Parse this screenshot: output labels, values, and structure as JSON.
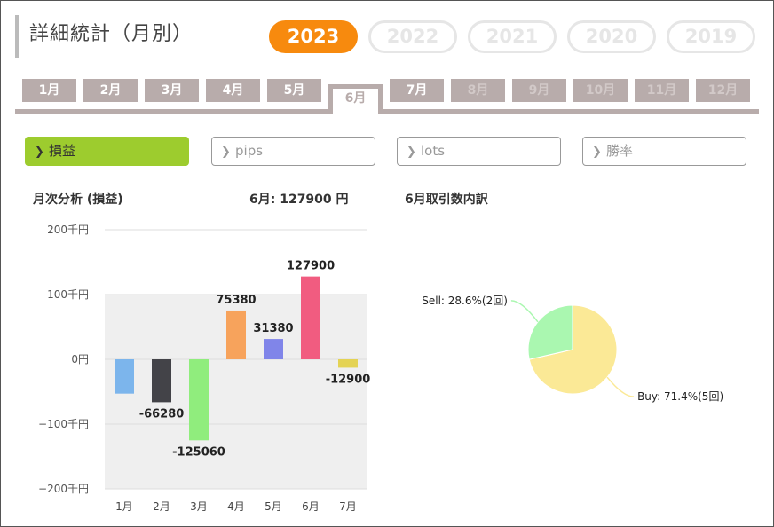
{
  "header": {
    "title": "詳細統計（月別）",
    "years": [
      {
        "label": "2023",
        "active": true
      },
      {
        "label": "2022",
        "active": false
      },
      {
        "label": "2021",
        "active": false
      },
      {
        "label": "2020",
        "active": false
      },
      {
        "label": "2019",
        "active": false
      }
    ]
  },
  "months": [
    {
      "label": "1月",
      "state": "past"
    },
    {
      "label": "2月",
      "state": "past"
    },
    {
      "label": "3月",
      "state": "past"
    },
    {
      "label": "4月",
      "state": "past"
    },
    {
      "label": "5月",
      "state": "past"
    },
    {
      "label": "6月",
      "state": "active"
    },
    {
      "label": "7月",
      "state": "past"
    },
    {
      "label": "8月",
      "state": "future"
    },
    {
      "label": "9月",
      "state": "future"
    },
    {
      "label": "10月",
      "state": "future"
    },
    {
      "label": "11月",
      "state": "future"
    },
    {
      "label": "12月",
      "state": "future"
    }
  ],
  "metrics": [
    {
      "label": "損益",
      "active": true,
      "icon": "chevron-right-icon"
    },
    {
      "label": "pips",
      "active": false,
      "icon": "chevron-right-icon"
    },
    {
      "label": "lots",
      "active": false,
      "icon": "chevron-right-icon"
    },
    {
      "label": "勝率",
      "active": false,
      "icon": "chevron-right-icon"
    }
  ],
  "colors": {
    "accent": "#f78a0e",
    "metric_active": "#9dcc2e",
    "tab": "#b8acab"
  },
  "chart_data": [
    {
      "type": "bar",
      "title": "月次分析 (損益)",
      "summary": "6月:  127900 円",
      "categories": [
        "1月",
        "2月",
        "3月",
        "4月",
        "5月",
        "6月",
        "7月"
      ],
      "values": [
        -53000,
        -66280,
        -125060,
        75380,
        31380,
        127900,
        -12900
      ],
      "data_labels": [
        "",
        "-66280",
        "-125060",
        "75380",
        "31380",
        "127900",
        "-12900"
      ],
      "colors": [
        "#7cb5ec",
        "#434348",
        "#90ed7d",
        "#f7a35c",
        "#8085e9",
        "#f15c80",
        "#e4d354"
      ],
      "ylim": [
        -200000,
        200000
      ],
      "yticks": [
        {
          "value": 200000,
          "label": "200千円"
        },
        {
          "value": 100000,
          "label": "100千円"
        },
        {
          "value": 0,
          "label": "0円"
        },
        {
          "value": -100000,
          "label": "−100千円"
        },
        {
          "value": -200000,
          "label": "−200千円"
        }
      ],
      "grid": true
    },
    {
      "type": "pie",
      "title": "6月取引数内訳",
      "slices": [
        {
          "name": "Buy",
          "value": 5,
          "percent": 71.4,
          "label": "Buy: 71.4%(5回)",
          "color": "#fbe996"
        },
        {
          "name": "Sell",
          "value": 2,
          "percent": 28.6,
          "label": "Sell: 28.6%(2回)",
          "color": "#aaf7b0"
        }
      ]
    }
  ]
}
